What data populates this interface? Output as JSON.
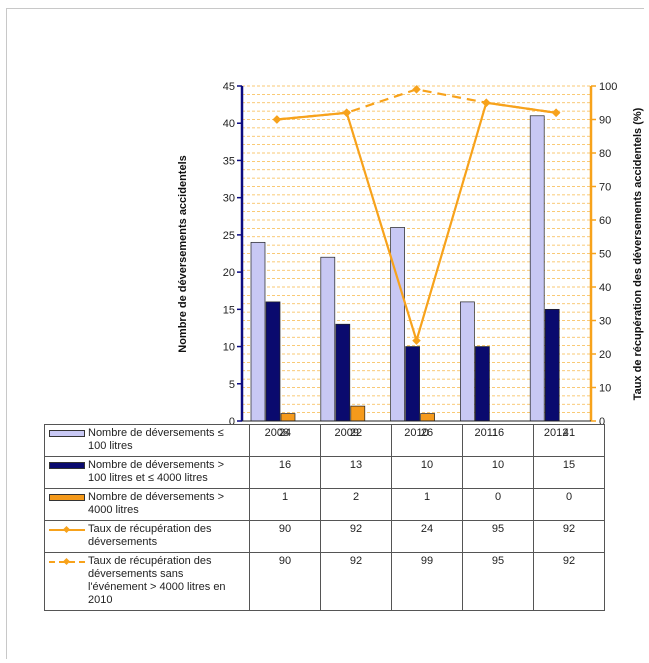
{
  "colors": {
    "bar_small": "#c8c8f4",
    "bar_medium": "#0a0a6e",
    "bar_large": "#f59a1b",
    "rate_line": "#f7a21b",
    "left_axis": "#0a0a80",
    "right_axis": "#f7a21b",
    "grid": "#f7b84a"
  },
  "chart_data": {
    "type": "bar",
    "categories": [
      "2008",
      "2009",
      "2010",
      "2011",
      "2012"
    ],
    "xlabel": "",
    "ylabel": "Nombre de déversements accidentels",
    "ylabel_right": "Taux de récupération des déversements accidentels (%)",
    "ylim": [
      0,
      45
    ],
    "ylim_right": [
      0,
      100
    ],
    "yticks": [
      0,
      5,
      10,
      15,
      20,
      25,
      30,
      35,
      40,
      45
    ],
    "yticks_right": [
      0,
      10,
      20,
      30,
      40,
      50,
      60,
      70,
      80,
      90,
      100
    ],
    "grid": true,
    "legend_placement": "table-below",
    "series": [
      {
        "name": "Nombre de déversements ≤ 100 litres",
        "type": "bar",
        "axis": "left",
        "values": [
          24,
          22,
          26,
          16,
          41
        ]
      },
      {
        "name": "Nombre de déversements > 100 litres et ≤ 4000 litres",
        "type": "bar",
        "axis": "left",
        "values": [
          16,
          13,
          10,
          10,
          15
        ]
      },
      {
        "name": "Nombre de déversements > 4000 litres",
        "type": "bar",
        "axis": "left",
        "values": [
          1,
          2,
          1,
          0,
          0
        ]
      },
      {
        "name": "Taux de récupération des déversements",
        "type": "line",
        "axis": "right",
        "values": [
          90,
          92,
          24,
          95,
          92
        ]
      },
      {
        "name": "Taux de récupération des déversements sans l'événement > 4000 litres en 2010",
        "type": "line",
        "axis": "right",
        "dashed": true,
        "values": [
          90,
          92,
          99,
          95,
          92
        ]
      }
    ]
  },
  "table": {
    "rows": [
      {
        "swatch": "bar",
        "color": "#c8c8f4",
        "label": "Nombre de déversements ≤ 100 litres",
        "values": [
          "24",
          "22",
          "26",
          "16",
          "41"
        ]
      },
      {
        "swatch": "bar",
        "color": "#0a0a6e",
        "label": "Nombre de déversements > 100 litres et ≤ 4000 litres",
        "values": [
          "16",
          "13",
          "10",
          "10",
          "15"
        ]
      },
      {
        "swatch": "bar",
        "color": "#f59a1b",
        "label": "Nombre de déversements > 4000 litres",
        "values": [
          "1",
          "2",
          "1",
          "0",
          "0"
        ]
      },
      {
        "swatch": "line",
        "color": "#f7a21b",
        "label": "Taux de récupération des déversements",
        "values": [
          "90",
          "92",
          "24",
          "95",
          "92"
        ]
      },
      {
        "swatch": "dashed",
        "color": "#f7a21b",
        "label": "Taux de récupération des déversements sans l'événement > 4000 litres en 2010",
        "values": [
          "90",
          "92",
          "99",
          "95",
          "92"
        ]
      }
    ]
  }
}
